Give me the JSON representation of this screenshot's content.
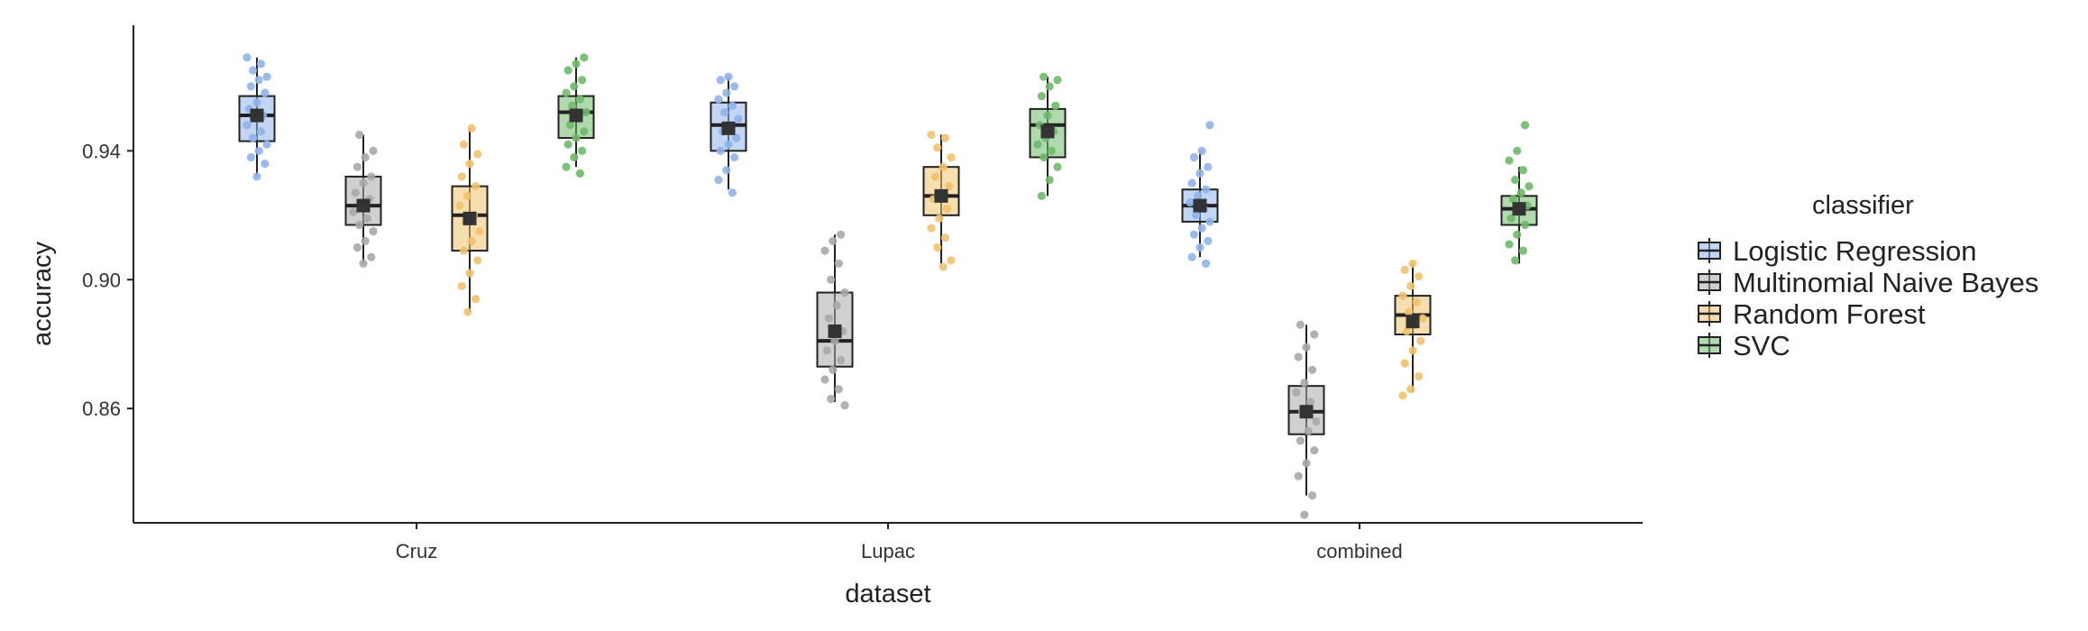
{
  "chart_data": {
    "type": "boxplot",
    "xlabel": "dataset",
    "ylabel": "accuracy",
    "categories": [
      "Cruz",
      "Lupac",
      "combined"
    ],
    "y_ticks": [
      "0.86",
      "0.90",
      "0.94"
    ],
    "y_tick_values": [
      0.86,
      0.9,
      0.94
    ],
    "ylim": [
      0.8245,
      0.979
    ],
    "legend": {
      "title": "classifier",
      "position": "right"
    },
    "grid": false,
    "series": [
      {
        "name": "Logistic Regression",
        "color": "#8fb4ea",
        "stats": [
          {
            "min": 0.932,
            "q1": 0.943,
            "median": 0.951,
            "q3": 0.957,
            "max": 0.969,
            "mean": 0.951
          },
          {
            "min": 0.928,
            "q1": 0.94,
            "median": 0.948,
            "q3": 0.955,
            "max": 0.963,
            "mean": 0.947
          },
          {
            "min": 0.907,
            "q1": 0.918,
            "median": 0.923,
            "q3": 0.928,
            "max": 0.94,
            "mean": 0.923
          }
        ],
        "points": [
          [
            0.969,
            0.967,
            0.965,
            0.963,
            0.962,
            0.96,
            0.958,
            0.955,
            0.953,
            0.951,
            0.95,
            0.948,
            0.946,
            0.944,
            0.942,
            0.94,
            0.938,
            0.936,
            0.932
          ],
          [
            0.963,
            0.962,
            0.96,
            0.958,
            0.956,
            0.954,
            0.952,
            0.95,
            0.948,
            0.946,
            0.944,
            0.942,
            0.94,
            0.938,
            0.934,
            0.931,
            0.927
          ],
          [
            0.948,
            0.94,
            0.938,
            0.935,
            0.933,
            0.93,
            0.928,
            0.926,
            0.924,
            0.922,
            0.92,
            0.918,
            0.916,
            0.914,
            0.912,
            0.91,
            0.907,
            0.905
          ]
        ]
      },
      {
        "name": "Multinomial Naive Bayes",
        "color": "#a9a9a9",
        "stats": [
          {
            "min": 0.905,
            "q1": 0.917,
            "median": 0.923,
            "q3": 0.932,
            "max": 0.945,
            "mean": 0.923
          },
          {
            "min": 0.862,
            "q1": 0.873,
            "median": 0.881,
            "q3": 0.896,
            "max": 0.914,
            "mean": 0.884
          },
          {
            "min": 0.833,
            "q1": 0.852,
            "median": 0.859,
            "q3": 0.867,
            "max": 0.886,
            "mean": 0.859
          }
        ],
        "points": [
          [
            0.945,
            0.94,
            0.938,
            0.935,
            0.932,
            0.93,
            0.927,
            0.925,
            0.923,
            0.921,
            0.919,
            0.917,
            0.915,
            0.912,
            0.91,
            0.907,
            0.905
          ],
          [
            0.914,
            0.912,
            0.909,
            0.905,
            0.9,
            0.896,
            0.892,
            0.888,
            0.884,
            0.881,
            0.878,
            0.875,
            0.872,
            0.869,
            0.866,
            0.863,
            0.861
          ],
          [
            0.886,
            0.883,
            0.879,
            0.876,
            0.872,
            0.868,
            0.865,
            0.862,
            0.859,
            0.856,
            0.853,
            0.85,
            0.847,
            0.843,
            0.839,
            0.833,
            0.827
          ]
        ]
      },
      {
        "name": "Random Forest",
        "color": "#f0c26e",
        "stats": [
          {
            "min": 0.89,
            "q1": 0.909,
            "median": 0.92,
            "q3": 0.929,
            "max": 0.947,
            "mean": 0.919
          },
          {
            "min": 0.905,
            "q1": 0.92,
            "median": 0.926,
            "q3": 0.935,
            "max": 0.945,
            "mean": 0.926
          },
          {
            "min": 0.865,
            "q1": 0.883,
            "median": 0.889,
            "q3": 0.895,
            "max": 0.905,
            "mean": 0.887
          }
        ],
        "points": [
          [
            0.947,
            0.942,
            0.939,
            0.936,
            0.932,
            0.929,
            0.926,
            0.923,
            0.92,
            0.918,
            0.915,
            0.912,
            0.909,
            0.906,
            0.902,
            0.898,
            0.894,
            0.89
          ],
          [
            0.945,
            0.944,
            0.941,
            0.938,
            0.935,
            0.932,
            0.929,
            0.927,
            0.925,
            0.922,
            0.919,
            0.916,
            0.913,
            0.91,
            0.906,
            0.904
          ],
          [
            0.905,
            0.903,
            0.901,
            0.898,
            0.895,
            0.893,
            0.89,
            0.888,
            0.886,
            0.884,
            0.881,
            0.878,
            0.874,
            0.87,
            0.866,
            0.864
          ]
        ]
      },
      {
        "name": "SVC",
        "color": "#6fba6a",
        "stats": [
          {
            "min": 0.935,
            "q1": 0.944,
            "median": 0.952,
            "q3": 0.957,
            "max": 0.969,
            "mean": 0.951
          },
          {
            "min": 0.926,
            "q1": 0.938,
            "median": 0.948,
            "q3": 0.953,
            "max": 0.963,
            "mean": 0.946
          },
          {
            "min": 0.905,
            "q1": 0.917,
            "median": 0.922,
            "q3": 0.926,
            "max": 0.935,
            "mean": 0.922
          }
        ],
        "points": [
          [
            0.969,
            0.967,
            0.965,
            0.962,
            0.96,
            0.958,
            0.956,
            0.954,
            0.952,
            0.95,
            0.948,
            0.946,
            0.944,
            0.942,
            0.94,
            0.938,
            0.935,
            0.933
          ],
          [
            0.963,
            0.962,
            0.96,
            0.957,
            0.954,
            0.951,
            0.948,
            0.946,
            0.944,
            0.942,
            0.94,
            0.938,
            0.935,
            0.931,
            0.926
          ],
          [
            0.948,
            0.94,
            0.937,
            0.934,
            0.931,
            0.929,
            0.927,
            0.925,
            0.923,
            0.921,
            0.919,
            0.917,
            0.914,
            0.911,
            0.909,
            0.906
          ]
        ]
      }
    ]
  }
}
